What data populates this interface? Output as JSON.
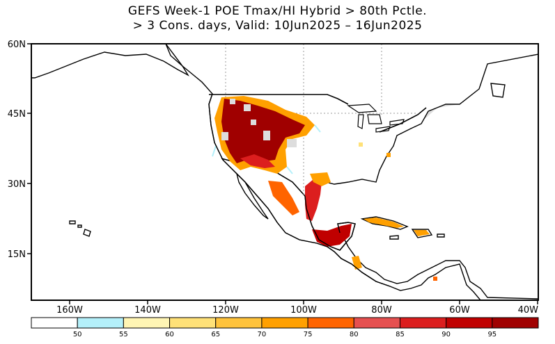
{
  "title": {
    "line1": "GEFS Week-1 POE Tmax/HI Hybrid > 80th Pctle.",
    "line2": "> 3 Cons. days, Valid: 10Jun2025 – 16Jun2025"
  },
  "map": {
    "lon_labels": [
      "160W",
      "140W",
      "120W",
      "100W",
      "80W",
      "60W",
      "40W"
    ],
    "lat_labels": [
      "60N",
      "45N",
      "30N",
      "15N"
    ],
    "colors": {
      "missing": "#dddddd",
      "land_outline": "#000000",
      "ocean": "#ffffff"
    },
    "hot_regions": [
      {
        "name": "western-us",
        "level": 95
      },
      {
        "name": "texas-gulf",
        "level": 90
      },
      {
        "name": "mexico-yucatan",
        "level": 90
      },
      {
        "name": "caribbean",
        "level": 85
      }
    ]
  },
  "colorbar": {
    "labels": [
      "50",
      "55",
      "60",
      "65",
      "70",
      "75",
      "80",
      "85",
      "90",
      "95"
    ],
    "colors": [
      "#ffffff",
      "#b4f0fa",
      "#fff5b4",
      "#ffe178",
      "#ffc33c",
      "#ffa000",
      "#ff6400",
      "#e65050",
      "#dc1e1e",
      "#c00000",
      "#a00000"
    ]
  }
}
